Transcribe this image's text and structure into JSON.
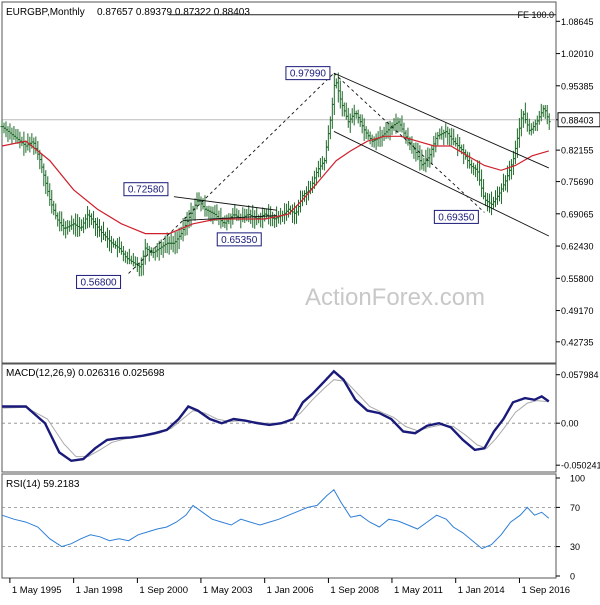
{
  "header": {
    "symbol": "EURGBP,Monthly",
    "ohlc": "0.87657 0.89379 0.87322 0.88403",
    "fe_label": "FE 100.0"
  },
  "watermark": "ActionForex.com",
  "colors": {
    "price_bars": "#1f6b2a",
    "ma": "#d0202c",
    "channel": "#111111",
    "macd_line": "#1a1a7a",
    "signal_line": "#aaaaaa",
    "rsi_line": "#2f7fd6",
    "label_border": "#1a1a7a",
    "label_text": "#1a1a7a"
  },
  "chart_data": [
    {
      "type": "candlestick",
      "panel": "price",
      "ylim": [
        0.39,
        1.12
      ],
      "y_ticks": [
        "1.08645",
        "1.02010",
        "0.95385",
        "0.88403",
        "0.82155",
        "0.75690",
        "0.69065",
        "0.62430",
        "0.55800",
        "0.49170",
        "0.42735"
      ],
      "current_price": 0.88403,
      "price_path": [
        [
          1995.0,
          0.87
        ],
        [
          1995.5,
          0.85
        ],
        [
          1996.0,
          0.83
        ],
        [
          1996.3,
          0.84
        ],
        [
          1996.6,
          0.8
        ],
        [
          1997.0,
          0.72
        ],
        [
          1997.3,
          0.68
        ],
        [
          1997.6,
          0.66
        ],
        [
          1998.0,
          0.67
        ],
        [
          1998.3,
          0.66
        ],
        [
          1998.6,
          0.69
        ],
        [
          1998.9,
          0.67
        ],
        [
          1999.2,
          0.65
        ],
        [
          1999.6,
          0.63
        ],
        [
          1999.9,
          0.62
        ],
        [
          2000.2,
          0.6
        ],
        [
          2000.5,
          0.59
        ],
        [
          2000.8,
          0.58
        ],
        [
          2001.0,
          0.62
        ],
        [
          2001.3,
          0.61
        ],
        [
          2001.6,
          0.62
        ],
        [
          2001.9,
          0.63
        ],
        [
          2002.2,
          0.63
        ],
        [
          2002.5,
          0.65
        ],
        [
          2002.8,
          0.68
        ],
        [
          2003.0,
          0.7
        ],
        [
          2003.2,
          0.72
        ],
        [
          2003.5,
          0.7
        ],
        [
          2003.9,
          0.69
        ],
        [
          2004.3,
          0.67
        ],
        [
          2004.7,
          0.69
        ],
        [
          2005.0,
          0.68
        ],
        [
          2005.3,
          0.69
        ],
        [
          2005.7,
          0.68
        ],
        [
          2006.0,
          0.69
        ],
        [
          2006.4,
          0.68
        ],
        [
          2006.8,
          0.69
        ],
        [
          2007.0,
          0.7
        ],
        [
          2007.3,
          0.69
        ],
        [
          2007.6,
          0.73
        ],
        [
          2007.9,
          0.74
        ],
        [
          2008.2,
          0.78
        ],
        [
          2008.5,
          0.8
        ],
        [
          2008.8,
          0.9
        ],
        [
          2008.95,
          0.97
        ],
        [
          2009.2,
          0.92
        ],
        [
          2009.5,
          0.88
        ],
        [
          2009.8,
          0.9
        ],
        [
          2010.2,
          0.86
        ],
        [
          2010.5,
          0.84
        ],
        [
          2010.9,
          0.85
        ],
        [
          2011.3,
          0.87
        ],
        [
          2011.6,
          0.88
        ],
        [
          2011.9,
          0.85
        ],
        [
          2012.3,
          0.82
        ],
        [
          2012.6,
          0.79
        ],
        [
          2012.9,
          0.81
        ],
        [
          2013.2,
          0.85
        ],
        [
          2013.6,
          0.86
        ],
        [
          2013.9,
          0.84
        ],
        [
          2014.3,
          0.82
        ],
        [
          2014.6,
          0.79
        ],
        [
          2014.9,
          0.78
        ],
        [
          2015.2,
          0.72
        ],
        [
          2015.5,
          0.71
        ],
        [
          2015.8,
          0.73
        ],
        [
          2016.1,
          0.76
        ],
        [
          2016.4,
          0.8
        ],
        [
          2016.6,
          0.85
        ],
        [
          2016.8,
          0.9
        ],
        [
          2017.1,
          0.86
        ],
        [
          2017.4,
          0.88
        ],
        [
          2017.7,
          0.91
        ],
        [
          2017.9,
          0.88
        ]
      ],
      "ma_path": [
        [
          1995.0,
          0.83
        ],
        [
          1996.0,
          0.84
        ],
        [
          1997.0,
          0.8
        ],
        [
          1998.0,
          0.74
        ],
        [
          1999.0,
          0.7
        ],
        [
          2000.0,
          0.67
        ],
        [
          2001.0,
          0.65
        ],
        [
          2002.0,
          0.65
        ],
        [
          2003.0,
          0.67
        ],
        [
          2004.0,
          0.68
        ],
        [
          2005.0,
          0.68
        ],
        [
          2006.0,
          0.68
        ],
        [
          2007.0,
          0.69
        ],
        [
          2007.6,
          0.72
        ],
        [
          2008.3,
          0.76
        ],
        [
          2009.0,
          0.8
        ],
        [
          2009.6,
          0.82
        ],
        [
          2010.3,
          0.84
        ],
        [
          2011.0,
          0.85
        ],
        [
          2011.7,
          0.85
        ],
        [
          2012.4,
          0.84
        ],
        [
          2013.1,
          0.83
        ],
        [
          2013.8,
          0.83
        ],
        [
          2014.5,
          0.81
        ],
        [
          2015.2,
          0.79
        ],
        [
          2015.9,
          0.78
        ],
        [
          2016.5,
          0.79
        ],
        [
          2017.2,
          0.81
        ],
        [
          2017.9,
          0.82
        ]
      ],
      "annotations": [
        {
          "label": "0.97990",
          "x": 2008.9,
          "y": 0.9799
        },
        {
          "label": "0.72580",
          "x": 2002.2,
          "y": 0.7258
        },
        {
          "label": "0.65350",
          "x": 2004.6,
          "y": 0.6535
        },
        {
          "label": "0.56800",
          "x": 2000.3,
          "y": 0.568
        },
        {
          "label": "0.69350",
          "x": 2015.2,
          "y": 0.6935
        }
      ],
      "trend_lines": [
        {
          "style": "solid",
          "from": [
            2008.9,
            0.9799
          ],
          "to": [
            2017.9,
            0.785
          ]
        },
        {
          "style": "solid",
          "from": [
            2008.9,
            0.86
          ],
          "to": [
            2017.9,
            0.645
          ]
        },
        {
          "style": "dashed",
          "from": [
            2000.3,
            0.568
          ],
          "to": [
            2008.9,
            0.9799
          ]
        },
        {
          "style": "dashed",
          "from": [
            2008.9,
            0.9799
          ],
          "to": [
            2015.2,
            0.6935
          ]
        },
        {
          "style": "solid",
          "from": [
            2002.2,
            0.7258
          ],
          "to": [
            2006.5,
            0.698
          ]
        },
        {
          "style": "solid",
          "from": [
            2002.6,
            0.677
          ],
          "to": [
            2006.5,
            0.687
          ]
        }
      ],
      "fe_line": {
        "y": 1.1,
        "x_from": 2002.0,
        "x_to": 2018.2
      }
    },
    {
      "type": "line",
      "panel": "macd",
      "title": "MACD(12,26,9) 0.026316 0.025698",
      "ylim": [
        -0.056,
        0.066
      ],
      "y_ticks": [
        "0.057984",
        "0.00",
        "-0.050241"
      ],
      "series": [
        {
          "role": "macd",
          "points": [
            [
              1995.0,
              0.02
            ],
            [
              1996.0,
              0.02
            ],
            [
              1996.8,
              0.0
            ],
            [
              1997.4,
              -0.035
            ],
            [
              1997.9,
              -0.045
            ],
            [
              1998.4,
              -0.043
            ],
            [
              1998.9,
              -0.03
            ],
            [
              1999.4,
              -0.02
            ],
            [
              1999.9,
              -0.018
            ],
            [
              2000.4,
              -0.017
            ],
            [
              2000.9,
              -0.015
            ],
            [
              2001.4,
              -0.012
            ],
            [
              2001.9,
              -0.008
            ],
            [
              2002.4,
              0.005
            ],
            [
              2002.8,
              0.02
            ],
            [
              2003.2,
              0.015
            ],
            [
              2003.7,
              0.005
            ],
            [
              2004.2,
              0.0
            ],
            [
              2004.7,
              0.005
            ],
            [
              2005.2,
              0.003
            ],
            [
              2005.7,
              0.0
            ],
            [
              2006.2,
              -0.002
            ],
            [
              2006.7,
              0.0
            ],
            [
              2007.2,
              0.005
            ],
            [
              2007.6,
              0.025
            ],
            [
              2008.0,
              0.035
            ],
            [
              2008.5,
              0.05
            ],
            [
              2008.9,
              0.062
            ],
            [
              2009.3,
              0.052
            ],
            [
              2009.8,
              0.028
            ],
            [
              2010.3,
              0.015
            ],
            [
              2010.8,
              0.012
            ],
            [
              2011.3,
              0.005
            ],
            [
              2011.8,
              -0.01
            ],
            [
              2012.3,
              -0.012
            ],
            [
              2012.8,
              -0.003
            ],
            [
              2013.3,
              0.0
            ],
            [
              2013.8,
              -0.005
            ],
            [
              2014.3,
              -0.02
            ],
            [
              2014.8,
              -0.032
            ],
            [
              2015.2,
              -0.03
            ],
            [
              2015.6,
              -0.01
            ],
            [
              2016.0,
              0.005
            ],
            [
              2016.4,
              0.025
            ],
            [
              2016.9,
              0.03
            ],
            [
              2017.3,
              0.028
            ],
            [
              2017.6,
              0.032
            ],
            [
              2017.9,
              0.026
            ]
          ]
        },
        {
          "role": "signal",
          "points": [
            [
              1995.0,
              0.018
            ],
            [
              1996.0,
              0.019
            ],
            [
              1996.9,
              0.005
            ],
            [
              1997.6,
              -0.025
            ],
            [
              1998.1,
              -0.04
            ],
            [
              1998.6,
              -0.04
            ],
            [
              1999.1,
              -0.032
            ],
            [
              1999.6,
              -0.023
            ],
            [
              2000.1,
              -0.019
            ],
            [
              2000.6,
              -0.017
            ],
            [
              2001.1,
              -0.015
            ],
            [
              2001.6,
              -0.012
            ],
            [
              2002.1,
              -0.006
            ],
            [
              2002.6,
              0.006
            ],
            [
              2003.0,
              0.015
            ],
            [
              2003.5,
              0.012
            ],
            [
              2004.0,
              0.005
            ],
            [
              2004.5,
              0.002
            ],
            [
              2005.0,
              0.003
            ],
            [
              2005.5,
              0.002
            ],
            [
              2006.0,
              0.0
            ],
            [
              2006.5,
              0.0
            ],
            [
              2007.0,
              0.002
            ],
            [
              2007.5,
              0.012
            ],
            [
              2008.0,
              0.028
            ],
            [
              2008.5,
              0.042
            ],
            [
              2008.9,
              0.052
            ],
            [
              2009.4,
              0.05
            ],
            [
              2009.9,
              0.035
            ],
            [
              2010.4,
              0.02
            ],
            [
              2010.9,
              0.013
            ],
            [
              2011.4,
              0.007
            ],
            [
              2011.9,
              -0.004
            ],
            [
              2012.4,
              -0.009
            ],
            [
              2012.9,
              -0.005
            ],
            [
              2013.4,
              -0.002
            ],
            [
              2013.9,
              -0.004
            ],
            [
              2014.4,
              -0.014
            ],
            [
              2014.9,
              -0.026
            ],
            [
              2015.3,
              -0.03
            ],
            [
              2015.7,
              -0.018
            ],
            [
              2016.1,
              -0.003
            ],
            [
              2016.5,
              0.013
            ],
            [
              2017.0,
              0.024
            ],
            [
              2017.4,
              0.027
            ],
            [
              2017.9,
              0.0257
            ]
          ]
        }
      ]
    },
    {
      "type": "line",
      "panel": "rsi",
      "title": "RSI(14) 59.2183",
      "ylim": [
        0,
        100
      ],
      "y_ticks": [
        "100",
        "70",
        "30",
        "0"
      ],
      "levels": [
        70,
        30
      ],
      "points": [
        [
          1995.0,
          62
        ],
        [
          1995.5,
          58
        ],
        [
          1996.0,
          55
        ],
        [
          1996.5,
          50
        ],
        [
          1997.0,
          38
        ],
        [
          1997.5,
          30
        ],
        [
          1997.9,
          33
        ],
        [
          1998.3,
          38
        ],
        [
          1998.7,
          42
        ],
        [
          1999.1,
          40
        ],
        [
          1999.5,
          36
        ],
        [
          1999.9,
          38
        ],
        [
          2000.3,
          36
        ],
        [
          2000.7,
          42
        ],
        [
          2001.1,
          45
        ],
        [
          2001.5,
          48
        ],
        [
          2001.9,
          50
        ],
        [
          2002.3,
          55
        ],
        [
          2002.7,
          62
        ],
        [
          2003.0,
          72
        ],
        [
          2003.4,
          65
        ],
        [
          2003.8,
          58
        ],
        [
          2004.2,
          55
        ],
        [
          2004.6,
          52
        ],
        [
          2005.0,
          58
        ],
        [
          2005.4,
          55
        ],
        [
          2005.8,
          52
        ],
        [
          2006.2,
          55
        ],
        [
          2006.6,
          58
        ],
        [
          2007.0,
          62
        ],
        [
          2007.4,
          66
        ],
        [
          2007.8,
          70
        ],
        [
          2008.2,
          72
        ],
        [
          2008.6,
          82
        ],
        [
          2008.9,
          88
        ],
        [
          2009.2,
          75
        ],
        [
          2009.6,
          60
        ],
        [
          2010.0,
          62
        ],
        [
          2010.4,
          55
        ],
        [
          2010.8,
          50
        ],
        [
          2011.2,
          58
        ],
        [
          2011.6,
          56
        ],
        [
          2012.0,
          52
        ],
        [
          2012.4,
          48
        ],
        [
          2012.8,
          55
        ],
        [
          2013.2,
          62
        ],
        [
          2013.6,
          58
        ],
        [
          2013.9,
          50
        ],
        [
          2014.3,
          44
        ],
        [
          2014.7,
          36
        ],
        [
          2015.1,
          28
        ],
        [
          2015.5,
          32
        ],
        [
          2015.9,
          42
        ],
        [
          2016.3,
          55
        ],
        [
          2016.7,
          62
        ],
        [
          2017.0,
          70
        ],
        [
          2017.3,
          62
        ],
        [
          2017.6,
          65
        ],
        [
          2017.9,
          59
        ]
      ]
    }
  ],
  "x_axis": {
    "ticks": [
      {
        "label": "1 May 1995",
        "x": 1995.33
      },
      {
        "label": "1 Jan 1998",
        "x": 1998.0
      },
      {
        "label": "1 Sep 2000",
        "x": 2000.67
      },
      {
        "label": "1 May 2003",
        "x": 2003.33
      },
      {
        "label": "1 Jan 2006",
        "x": 2006.0
      },
      {
        "label": "1 Sep 2008",
        "x": 2008.67
      },
      {
        "label": "1 May 2011",
        "x": 2011.33
      },
      {
        "label": "1 Jan 2014",
        "x": 2014.0
      },
      {
        "label": "1 Sep 2016",
        "x": 2016.67
      }
    ],
    "xlim": [
      1995.0,
      2018.2
    ]
  }
}
